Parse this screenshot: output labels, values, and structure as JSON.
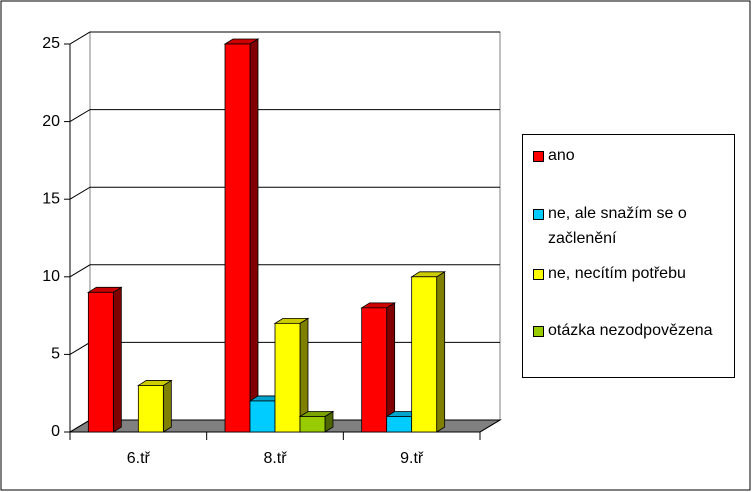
{
  "chart_data": {
    "type": "bar3d",
    "categories": [
      "6.tř",
      "8.tř",
      "9.tř"
    ],
    "series": [
      {
        "name": "ano",
        "color": "#ff0000",
        "values": [
          9,
          25,
          8
        ]
      },
      {
        "name": "ne, ale snažím se o začlenění",
        "color": "#00ccff",
        "values": [
          0,
          2,
          1
        ]
      },
      {
        "name": "ne, necítím potřebu",
        "color": "#ffff00",
        "values": [
          3,
          7,
          10
        ]
      },
      {
        "name": "otázka nezodpovězena",
        "color": "#99cc00",
        "values": [
          0,
          1,
          0
        ]
      }
    ],
    "ylim": [
      0,
      25
    ],
    "yticks": [
      0,
      5,
      10,
      15,
      20,
      25
    ],
    "grid": true,
    "legend": "right"
  }
}
